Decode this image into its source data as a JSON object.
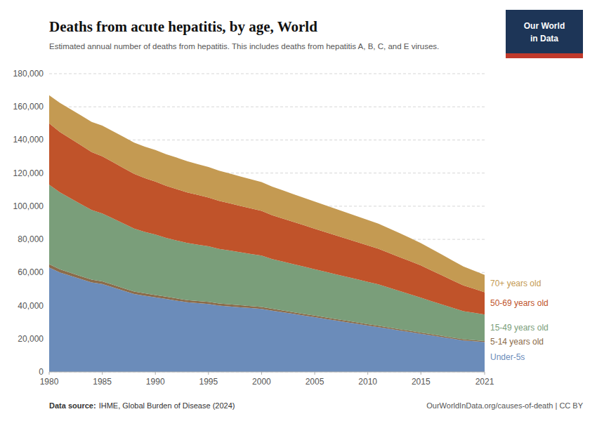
{
  "chart_data": {
    "type": "area",
    "stacked": true,
    "title": "Deaths from acute hepatitis, by age, World",
    "subtitle": "Estimated annual number of deaths from hepatitis. This includes deaths from hepatitis A, B, C, and E viruses.",
    "source_label": "Data source:",
    "source": "IHME, Global Burden of Disease (2024)",
    "url": "OurWorldInData.org/causes-of-death | CC BY",
    "logo": {
      "texts": [
        "Our World",
        "in Data"
      ],
      "color": "#1d3557",
      "bar_color": "#c0392b"
    },
    "x": [
      1980,
      1981,
      1982,
      1983,
      1984,
      1985,
      1986,
      1987,
      1988,
      1989,
      1990,
      1991,
      1992,
      1993,
      1994,
      1995,
      1996,
      1997,
      1998,
      1999,
      2000,
      2001,
      2002,
      2003,
      2004,
      2005,
      2006,
      2007,
      2008,
      2009,
      2010,
      2011,
      2012,
      2013,
      2014,
      2015,
      2016,
      2017,
      2018,
      2019,
      2020,
      2021
    ],
    "series": [
      {
        "name": "Under-5s",
        "color": "#6b8cba",
        "values": [
          63000,
          60000,
          58000,
          56000,
          54000,
          53000,
          51000,
          49000,
          47000,
          46000,
          45000,
          44000,
          43000,
          42000,
          41500,
          41000,
          40000,
          39500,
          39000,
          38500,
          38000,
          37000,
          36000,
          35000,
          34000,
          33000,
          32000,
          31000,
          30000,
          29000,
          28000,
          27000,
          26000,
          25000,
          24000,
          23000,
          22000,
          21000,
          20000,
          19000,
          18500,
          18000
        ]
      },
      {
        "name": "5-14 years old",
        "color": "#8b6b4a",
        "values": [
          2000,
          1900,
          1800,
          1750,
          1700,
          1650,
          1600,
          1550,
          1500,
          1450,
          1400,
          1380,
          1350,
          1320,
          1300,
          1280,
          1250,
          1220,
          1200,
          1180,
          1150,
          1100,
          1050,
          1000,
          980,
          950,
          920,
          900,
          880,
          860,
          840,
          820,
          800,
          780,
          760,
          740,
          720,
          700,
          680,
          660,
          640,
          600
        ]
      },
      {
        "name": "15-49 years old",
        "color": "#7a9e7a",
        "values": [
          48000,
          46500,
          45000,
          43500,
          42000,
          41000,
          40000,
          39000,
          38000,
          37000,
          36500,
          35500,
          35000,
          34500,
          34000,
          33500,
          33000,
          32500,
          32000,
          31500,
          31000,
          30000,
          29500,
          29000,
          28500,
          28000,
          27500,
          27000,
          26500,
          26000,
          25500,
          25000,
          24000,
          23000,
          22000,
          21000,
          20000,
          19000,
          18000,
          17000,
          16500,
          16000
        ]
      },
      {
        "name": "50-69 years old",
        "color": "#c0532a",
        "values": [
          37000,
          36500,
          36000,
          35500,
          35000,
          34500,
          34000,
          33500,
          33000,
          32500,
          32000,
          31500,
          31000,
          30500,
          30000,
          29500,
          29000,
          28500,
          28000,
          27500,
          27000,
          26500,
          26000,
          25500,
          25000,
          24500,
          24000,
          23500,
          23000,
          22500,
          22000,
          21500,
          21000,
          20500,
          20000,
          19500,
          18500,
          17500,
          16500,
          15500,
          14500,
          13500
        ]
      },
      {
        "name": "70+ years old",
        "color": "#c49a52",
        "values": [
          17000,
          17500,
          17800,
          18000,
          18200,
          18500,
          18700,
          18800,
          18900,
          19000,
          19000,
          19000,
          19000,
          18800,
          18600,
          18400,
          18200,
          18000,
          17800,
          17600,
          17400,
          17200,
          17000,
          16800,
          16600,
          16400,
          16200,
          16000,
          15800,
          15600,
          15400,
          15200,
          14800,
          14500,
          14000,
          13500,
          13000,
          12500,
          12000,
          11500,
          11000,
          10500
        ]
      }
    ],
    "xlim": [
      1980,
      2021
    ],
    "xticks": [
      1980,
      1985,
      1990,
      1995,
      2000,
      2005,
      2010,
      2015,
      2021
    ],
    "ylim": [
      0,
      180000
    ],
    "yticks": [
      0,
      {
        "value": 20000,
        "label": "20,000"
      },
      {
        "value": 40000,
        "label": "40,000"
      },
      {
        "value": 60000,
        "label": "60,000"
      },
      {
        "value": 80000,
        "label": "80,000"
      },
      {
        "value": 100000,
        "label": "100,000"
      },
      {
        "value": 120000,
        "label": "120,000"
      },
      {
        "value": 140000,
        "label": "140,000"
      },
      {
        "value": 160000,
        "label": "160,000"
      },
      {
        "value": 180000,
        "label": "180,000"
      }
    ],
    "grid": true
  }
}
